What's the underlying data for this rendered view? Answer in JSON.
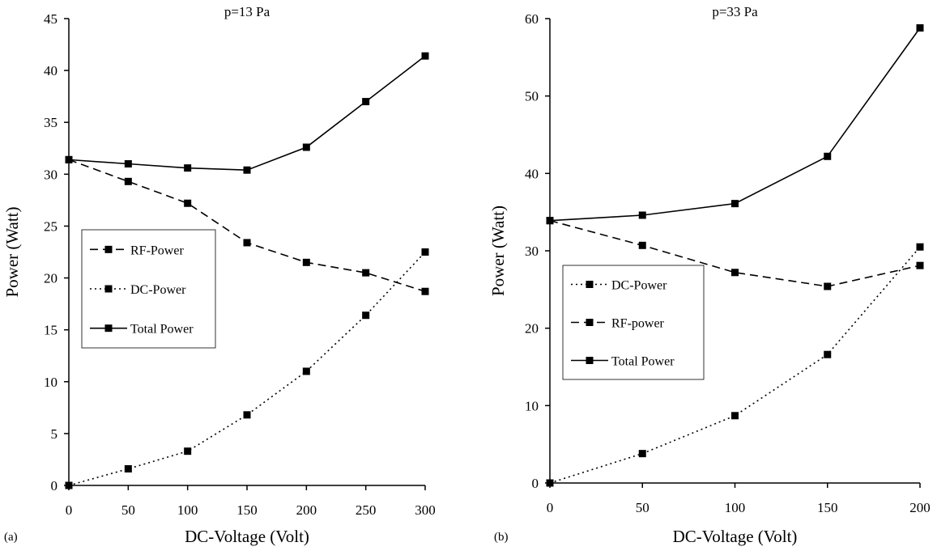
{
  "chart_data": [
    {
      "type": "line",
      "panel_label": "(a)",
      "title": "p=13 Pa",
      "xlabel": "DC-Voltage (Volt)",
      "ylabel": "Power (Watt)",
      "xlim": [
        0,
        300
      ],
      "ylim": [
        0,
        45
      ],
      "xticks": [
        0,
        50,
        100,
        150,
        200,
        250,
        300
      ],
      "yticks": [
        0,
        5,
        10,
        15,
        20,
        25,
        30,
        35,
        40,
        45
      ],
      "x": [
        0,
        50,
        100,
        150,
        200,
        250,
        300
      ],
      "grid": false,
      "legend_position": "middle-left",
      "series": [
        {
          "name": "RF-Power",
          "style": "dashed",
          "values": [
            31.4,
            29.3,
            27.2,
            23.4,
            21.5,
            20.5,
            18.7
          ]
        },
        {
          "name": "DC-Power",
          "style": "dotted",
          "values": [
            0.0,
            1.6,
            3.3,
            6.8,
            11.0,
            16.4,
            22.5
          ]
        },
        {
          "name": "Total Power",
          "style": "solid",
          "values": [
            31.4,
            31.0,
            30.6,
            30.4,
            32.6,
            37.0,
            41.4
          ]
        }
      ]
    },
    {
      "type": "line",
      "panel_label": "(b)",
      "title": "p=33 Pa",
      "xlabel": "DC-Voltage (Volt)",
      "ylabel": "Power (Watt)",
      "xlim": [
        0,
        200
      ],
      "ylim": [
        0,
        60
      ],
      "xticks": [
        0,
        50,
        100,
        150,
        200
      ],
      "yticks": [
        0,
        10,
        20,
        30,
        40,
        50,
        60
      ],
      "x": [
        0,
        50,
        100,
        150,
        200
      ],
      "grid": false,
      "legend_position": "middle-left",
      "series": [
        {
          "name": "DC-Power",
          "style": "dotted",
          "values": [
            0.0,
            3.8,
            8.7,
            16.6,
            30.5
          ]
        },
        {
          "name": "RF-power",
          "style": "dashed",
          "values": [
            33.9,
            30.7,
            27.2,
            25.4,
            28.1
          ]
        },
        {
          "name": "Total Power",
          "style": "solid",
          "values": [
            33.9,
            34.6,
            36.1,
            42.2,
            58.8
          ]
        }
      ]
    }
  ]
}
